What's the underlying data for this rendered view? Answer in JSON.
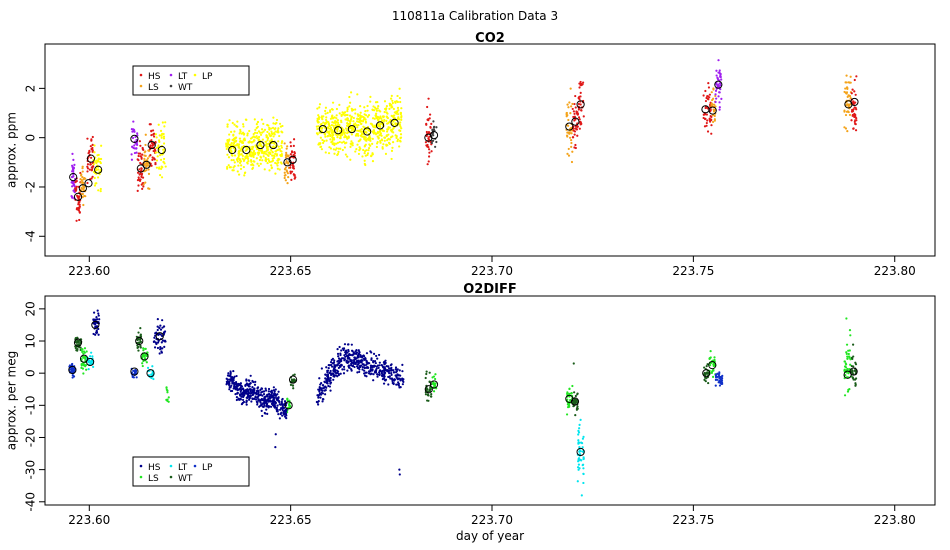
{
  "figure_title": "110811a   Calibration Data 3",
  "colors": {
    "HS": "#e01818",
    "LS": "#f4a31a",
    "LT": "#a020f0",
    "WT": "#404040",
    "LP": "#ffff00",
    "o2_HS": "#00008b",
    "o2_LS": "#22e622",
    "o2_LT": "#00e5ee",
    "o2_WT": "#1a5c1a",
    "o2_LP": "#1030c8"
  },
  "chart_data": [
    {
      "type": "scatter",
      "title": "CO2",
      "xlabel": "",
      "ylabel": "approx. ppm",
      "xlim": [
        223.589,
        223.81
      ],
      "ylim": [
        -4.8,
        3.8
      ],
      "xticks": [
        223.6,
        223.65,
        223.7,
        223.75,
        223.8
      ],
      "xtick_labels": [
        "223.60",
        "223.65",
        "223.70",
        "223.75",
        "223.80"
      ],
      "yticks": [
        -4,
        -2,
        0,
        2
      ],
      "ytick_labels": [
        "-4",
        "-2",
        "0",
        "2"
      ],
      "legend": {
        "placement": "top-left",
        "entries": [
          "HS",
          "LS",
          "LT",
          "WT",
          "LP"
        ]
      },
      "clusters": [
        {
          "x0": 223.5955,
          "x1": 223.5965,
          "mean": -1.7,
          "sd": 0.65,
          "n": 40,
          "key": "LT"
        },
        {
          "x0": 223.5965,
          "x1": 223.5978,
          "mean": -2.4,
          "sd": 0.6,
          "n": 45,
          "key": "HS"
        },
        {
          "x0": 223.5978,
          "x1": 223.599,
          "mean": -2.0,
          "sd": 0.5,
          "n": 35,
          "key": "LS"
        },
        {
          "x0": 223.5995,
          "x1": 223.601,
          "mean": -0.8,
          "sd": 0.7,
          "n": 40,
          "key": "HS"
        },
        {
          "x0": 223.601,
          "x1": 223.603,
          "mean": -1.2,
          "sd": 0.6,
          "n": 45,
          "key": "LP"
        },
        {
          "x0": 223.6105,
          "x1": 223.612,
          "mean": -0.1,
          "sd": 0.5,
          "n": 30,
          "key": "LT"
        },
        {
          "x0": 223.612,
          "x1": 223.6135,
          "mean": -1.2,
          "sd": 0.9,
          "n": 45,
          "key": "HS"
        },
        {
          "x0": 223.6135,
          "x1": 223.615,
          "mean": -1.0,
          "sd": 0.6,
          "n": 35,
          "key": "LS"
        },
        {
          "x0": 223.615,
          "x1": 223.6165,
          "mean": -0.3,
          "sd": 0.7,
          "n": 40,
          "key": "HS"
        },
        {
          "x0": 223.6165,
          "x1": 223.619,
          "mean": -0.4,
          "sd": 0.8,
          "n": 50,
          "key": "LP"
        },
        {
          "x0": 223.634,
          "x1": 223.6375,
          "mean": -0.5,
          "sd": 0.7,
          "n": 110,
          "key": "LP"
        },
        {
          "x0": 223.6375,
          "x1": 223.641,
          "mean": -0.5,
          "sd": 0.7,
          "n": 110,
          "key": "LP"
        },
        {
          "x0": 223.641,
          "x1": 223.6445,
          "mean": -0.3,
          "sd": 0.6,
          "n": 110,
          "key": "LP"
        },
        {
          "x0": 223.6445,
          "x1": 223.648,
          "mean": -0.3,
          "sd": 0.7,
          "n": 110,
          "key": "LP"
        },
        {
          "x0": 223.6485,
          "x1": 223.6497,
          "mean": -1.0,
          "sd": 0.6,
          "n": 30,
          "key": "LS"
        },
        {
          "x0": 223.6497,
          "x1": 223.6512,
          "mean": -0.9,
          "sd": 0.7,
          "n": 35,
          "key": "HS"
        },
        {
          "x0": 223.6565,
          "x1": 223.6605,
          "mean": 0.4,
          "sd": 0.7,
          "n": 120,
          "key": "LP"
        },
        {
          "x0": 223.6605,
          "x1": 223.664,
          "mean": 0.3,
          "sd": 0.7,
          "n": 110,
          "key": "LP"
        },
        {
          "x0": 223.664,
          "x1": 223.6675,
          "mean": 0.4,
          "sd": 0.7,
          "n": 110,
          "key": "LP"
        },
        {
          "x0": 223.6675,
          "x1": 223.671,
          "mean": 0.3,
          "sd": 0.8,
          "n": 110,
          "key": "LP"
        },
        {
          "x0": 223.671,
          "x1": 223.6745,
          "mean": 0.5,
          "sd": 0.7,
          "n": 110,
          "key": "LP"
        },
        {
          "x0": 223.6745,
          "x1": 223.6775,
          "mean": 0.6,
          "sd": 0.8,
          "n": 100,
          "key": "LP"
        },
        {
          "x0": 223.6835,
          "x1": 223.685,
          "mean": 0.0,
          "sd": 0.8,
          "n": 40,
          "key": "HS"
        },
        {
          "x0": 223.685,
          "x1": 223.6862,
          "mean": 0.1,
          "sd": 0.5,
          "n": 20,
          "key": "WT"
        },
        {
          "x0": 223.7185,
          "x1": 223.72,
          "mean": 0.4,
          "sd": 0.8,
          "n": 40,
          "key": "LS"
        },
        {
          "x0": 223.72,
          "x1": 223.7213,
          "mean": 0.7,
          "sd": 0.7,
          "n": 35,
          "key": "HS"
        },
        {
          "x0": 223.7213,
          "x1": 223.7228,
          "mean": 1.3,
          "sd": 0.8,
          "n": 40,
          "key": "HS"
        },
        {
          "x0": 223.7525,
          "x1": 223.7545,
          "mean": 1.1,
          "sd": 0.8,
          "n": 45,
          "key": "HS"
        },
        {
          "x0": 223.7545,
          "x1": 223.7555,
          "mean": 1.3,
          "sd": 0.6,
          "n": 25,
          "key": "LS"
        },
        {
          "x0": 223.7555,
          "x1": 223.757,
          "mean": 2.2,
          "sd": 0.6,
          "n": 40,
          "key": "LT"
        },
        {
          "x0": 223.7875,
          "x1": 223.7892,
          "mean": 1.5,
          "sd": 0.8,
          "n": 45,
          "key": "LS"
        },
        {
          "x0": 223.7892,
          "x1": 223.7905,
          "mean": 1.2,
          "sd": 0.8,
          "n": 40,
          "key": "HS"
        }
      ],
      "means": [
        {
          "x": 223.596,
          "y": -1.6
        },
        {
          "x": 223.5972,
          "y": -2.4
        },
        {
          "x": 223.5984,
          "y": -2.05
        },
        {
          "x": 223.5998,
          "y": -1.85
        },
        {
          "x": 223.6004,
          "y": -0.85
        },
        {
          "x": 223.6022,
          "y": -1.3
        },
        {
          "x": 223.6112,
          "y": -0.05
        },
        {
          "x": 223.6128,
          "y": -1.25
        },
        {
          "x": 223.6142,
          "y": -1.1
        },
        {
          "x": 223.6155,
          "y": -0.3
        },
        {
          "x": 223.618,
          "y": -0.5
        },
        {
          "x": 223.6355,
          "y": -0.5
        },
        {
          "x": 223.639,
          "y": -0.5
        },
        {
          "x": 223.6425,
          "y": -0.3
        },
        {
          "x": 223.6457,
          "y": -0.3
        },
        {
          "x": 223.6492,
          "y": -1.0
        },
        {
          "x": 223.6505,
          "y": -0.9
        },
        {
          "x": 223.658,
          "y": 0.35
        },
        {
          "x": 223.6618,
          "y": 0.3
        },
        {
          "x": 223.6652,
          "y": 0.35
        },
        {
          "x": 223.669,
          "y": 0.25
        },
        {
          "x": 223.6722,
          "y": 0.5
        },
        {
          "x": 223.6758,
          "y": 0.6
        },
        {
          "x": 223.6842,
          "y": 0.0
        },
        {
          "x": 223.6856,
          "y": 0.1
        },
        {
          "x": 223.7192,
          "y": 0.45
        },
        {
          "x": 223.7207,
          "y": 0.65
        },
        {
          "x": 223.722,
          "y": 1.35
        },
        {
          "x": 223.753,
          "y": 1.15
        },
        {
          "x": 223.7548,
          "y": 1.1
        },
        {
          "x": 223.7562,
          "y": 2.15
        },
        {
          "x": 223.7885,
          "y": 1.35
        },
        {
          "x": 223.79,
          "y": 1.45
        }
      ]
    },
    {
      "type": "scatter",
      "title": "O2DIFF",
      "xlabel": "day of year",
      "ylabel": "approx. per meg",
      "xlim": [
        223.589,
        223.81
      ],
      "ylim": [
        -41,
        24
      ],
      "xticks": [
        223.6,
        223.65,
        223.7,
        223.75,
        223.8
      ],
      "xtick_labels": [
        "223.60",
        "223.65",
        "223.70",
        "223.75",
        "223.80"
      ],
      "yticks": [
        -40,
        -30,
        -20,
        -10,
        0,
        10,
        20
      ],
      "ytick_labels": [
        "-40",
        "-30",
        "-20",
        "-10",
        "0",
        "10",
        "20"
      ],
      "legend": {
        "placement": "bottom-left",
        "entries": [
          "HS",
          "LS",
          "LT",
          "WT",
          "LP"
        ]
      },
      "clusters": [
        {
          "x0": 223.595,
          "x1": 223.5965,
          "mean": 1.0,
          "sd": 1.5,
          "n": 40,
          "key": "o2_LP"
        },
        {
          "x0": 223.5965,
          "x1": 223.598,
          "mean": 9.5,
          "sd": 2.0,
          "n": 35,
          "key": "o2_WT"
        },
        {
          "x0": 223.598,
          "x1": 223.5995,
          "mean": 4.5,
          "sd": 2.5,
          "n": 35,
          "key": "o2_LS"
        },
        {
          "x0": 223.5995,
          "x1": 223.601,
          "mean": 3.5,
          "sd": 1.5,
          "n": 25,
          "key": "o2_LT"
        },
        {
          "x0": 223.601,
          "x1": 223.6025,
          "mean": 15.0,
          "sd": 2.5,
          "n": 40,
          "key": "o2_HS"
        },
        {
          "x0": 223.6105,
          "x1": 223.6118,
          "mean": 0.5,
          "sd": 1.5,
          "n": 20,
          "key": "o2_LP"
        },
        {
          "x0": 223.6118,
          "x1": 223.613,
          "mean": 10.0,
          "sd": 2.0,
          "n": 25,
          "key": "o2_WT"
        },
        {
          "x0": 223.613,
          "x1": 223.6145,
          "mean": 5.0,
          "sd": 2.5,
          "n": 30,
          "key": "o2_LS"
        },
        {
          "x0": 223.6145,
          "x1": 223.616,
          "mean": 0.0,
          "sd": 1.5,
          "n": 20,
          "key": "o2_LT"
        },
        {
          "x0": 223.616,
          "x1": 223.619,
          "mean": 11.5,
          "sd": 3.5,
          "n": 55,
          "key": "o2_HS"
        },
        {
          "x0": 223.619,
          "x1": 223.62,
          "mean": -6.0,
          "sd": 3.0,
          "n": 10,
          "key": "o2_LS"
        },
        {
          "x0": 223.649,
          "x1": 223.65,
          "mean": -10.0,
          "sd": 2.0,
          "n": 15,
          "key": "o2_LS"
        },
        {
          "x0": 223.65,
          "x1": 223.6512,
          "mean": -2.0,
          "sd": 2.0,
          "n": 20,
          "key": "o2_WT"
        },
        {
          "x0": 223.6835,
          "x1": 223.685,
          "mean": -5.0,
          "sd": 3.5,
          "n": 30,
          "key": "o2_WT"
        },
        {
          "x0": 223.685,
          "x1": 223.6862,
          "mean": -3.5,
          "sd": 2.0,
          "n": 20,
          "key": "o2_LS"
        },
        {
          "x0": 223.7185,
          "x1": 223.72,
          "mean": -8.0,
          "sd": 3.0,
          "n": 35,
          "key": "o2_LS"
        },
        {
          "x0": 223.72,
          "x1": 223.7213,
          "mean": -9.0,
          "sd": 3.0,
          "n": 30,
          "key": "o2_WT"
        },
        {
          "x0": 223.7213,
          "x1": 223.7228,
          "mean": -25.0,
          "sd": 6.0,
          "n": 50,
          "key": "o2_LT"
        },
        {
          "x0": 223.7525,
          "x1": 223.754,
          "mean": 0.0,
          "sd": 2.0,
          "n": 25,
          "key": "o2_WT"
        },
        {
          "x0": 223.754,
          "x1": 223.7555,
          "mean": 2.5,
          "sd": 2.5,
          "n": 30,
          "key": "o2_LS"
        },
        {
          "x0": 223.7555,
          "x1": 223.7572,
          "mean": -2.0,
          "sd": 1.5,
          "n": 35,
          "key": "o2_LP"
        },
        {
          "x0": 223.7875,
          "x1": 223.7892,
          "mean": 2.0,
          "sd": 6.0,
          "n": 45,
          "key": "o2_LS"
        },
        {
          "x0": 223.7892,
          "x1": 223.7905,
          "mean": 0.5,
          "sd": 4.0,
          "n": 30,
          "key": "o2_WT"
        }
      ],
      "trend_clusters": [
        {
          "x0": 223.634,
          "x1": 223.649,
          "y0": -3.0,
          "y1": -10.5,
          "sd": 2.5,
          "n": 420,
          "key": "o2_HS"
        },
        {
          "x0": 223.6565,
          "x1": 223.678,
          "y0": -7.0,
          "y1": -2.0,
          "peak": 5.0,
          "sd": 2.8,
          "n": 480,
          "key": "o2_HS"
        }
      ],
      "outliers": [
        {
          "x": 223.6462,
          "y": -23,
          "key": "o2_HS"
        },
        {
          "x": 223.6463,
          "y": -19,
          "key": "o2_HS"
        },
        {
          "x": 223.677,
          "y": -30,
          "key": "o2_HS"
        },
        {
          "x": 223.6771,
          "y": -31.5,
          "key": "o2_HS"
        },
        {
          "x": 223.7203,
          "y": 3,
          "key": "o2_WT"
        },
        {
          "x": 223.7223,
          "y": -38,
          "key": "o2_LT"
        },
        {
          "x": 223.788,
          "y": 17,
          "key": "o2_LS"
        }
      ],
      "means": [
        {
          "x": 223.5958,
          "y": 1.0
        },
        {
          "x": 223.5972,
          "y": 9.5
        },
        {
          "x": 223.5987,
          "y": 4.5
        },
        {
          "x": 223.6002,
          "y": 3.5
        },
        {
          "x": 223.6015,
          "y": 15.0
        },
        {
          "x": 223.6112,
          "y": 0.5
        },
        {
          "x": 223.6124,
          "y": 10.0
        },
        {
          "x": 223.6137,
          "y": 5.2
        },
        {
          "x": 223.6152,
          "y": 0.0
        },
        {
          "x": 223.6175,
          "y": 11.5
        },
        {
          "x": 223.6495,
          "y": -10.0
        },
        {
          "x": 223.6506,
          "y": -2.0
        },
        {
          "x": 223.6843,
          "y": -5.0
        },
        {
          "x": 223.6856,
          "y": -3.5
        },
        {
          "x": 223.7192,
          "y": -8.0
        },
        {
          "x": 223.7206,
          "y": -8.8
        },
        {
          "x": 223.722,
          "y": -24.5
        },
        {
          "x": 223.7532,
          "y": 0.0
        },
        {
          "x": 223.7547,
          "y": 2.5
        },
        {
          "x": 223.7883,
          "y": -0.5
        },
        {
          "x": 223.7898,
          "y": 0.5
        }
      ]
    }
  ]
}
